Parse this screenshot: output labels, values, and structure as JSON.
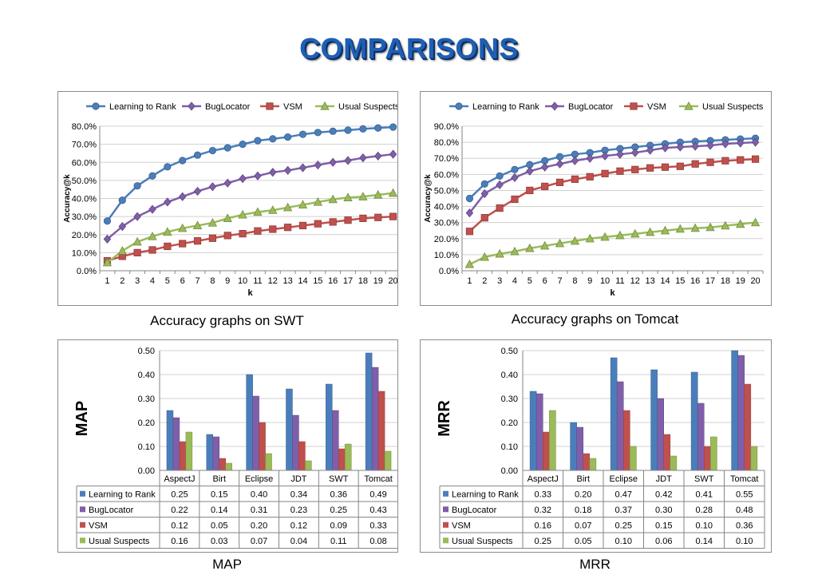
{
  "slide": {
    "title": "COMPARISONS"
  },
  "captions": {
    "swt": "Accuracy graphs on SWT",
    "tomcat": "Accuracy graphs on Tomcat",
    "map": "MAP",
    "mrr": "MRR"
  },
  "colors": {
    "Learning to Rank": "#4a7ebb",
    "BugLocator": "#7f5fa9",
    "VSM": "#c0504d",
    "Usual Suspects": "#9bbb59"
  },
  "chart_data": [
    {
      "id": "swt",
      "type": "line",
      "xlabel": "k",
      "ylabel": "Accuracy@k",
      "x": [
        1,
        2,
        3,
        4,
        5,
        6,
        7,
        8,
        9,
        10,
        11,
        12,
        13,
        14,
        15,
        16,
        17,
        18,
        19,
        20
      ],
      "ylim": [
        0,
        0.8
      ],
      "yticks": [
        0,
        0.1,
        0.2,
        0.3,
        0.4,
        0.5,
        0.6,
        0.7,
        0.8
      ],
      "ytick_labels": [
        "0.0%",
        "10.0%",
        "20.0%",
        "30.0%",
        "40.0%",
        "50.0%",
        "60.0%",
        "70.0%",
        "80.0%"
      ],
      "grid": true,
      "legend": "top",
      "series": [
        {
          "name": "Learning to Rank",
          "marker": "circle",
          "values": [
            0.275,
            0.39,
            0.47,
            0.525,
            0.575,
            0.61,
            0.64,
            0.665,
            0.68,
            0.7,
            0.72,
            0.73,
            0.74,
            0.755,
            0.765,
            0.772,
            0.778,
            0.785,
            0.79,
            0.795
          ]
        },
        {
          "name": "BugLocator",
          "marker": "diamond",
          "values": [
            0.175,
            0.245,
            0.3,
            0.34,
            0.38,
            0.41,
            0.44,
            0.465,
            0.485,
            0.51,
            0.525,
            0.545,
            0.555,
            0.57,
            0.585,
            0.6,
            0.61,
            0.625,
            0.635,
            0.645
          ]
        },
        {
          "name": "VSM",
          "marker": "square",
          "values": [
            0.055,
            0.08,
            0.1,
            0.115,
            0.135,
            0.15,
            0.165,
            0.18,
            0.195,
            0.205,
            0.22,
            0.23,
            0.24,
            0.25,
            0.26,
            0.27,
            0.28,
            0.29,
            0.295,
            0.3
          ]
        },
        {
          "name": "Usual Suspects",
          "marker": "triangle",
          "values": [
            0.045,
            0.11,
            0.16,
            0.19,
            0.215,
            0.235,
            0.25,
            0.265,
            0.29,
            0.31,
            0.325,
            0.335,
            0.35,
            0.365,
            0.38,
            0.395,
            0.405,
            0.41,
            0.42,
            0.43
          ]
        }
      ]
    },
    {
      "id": "tomcat",
      "type": "line",
      "xlabel": "k",
      "ylabel": "Accuracy@k",
      "x": [
        1,
        2,
        3,
        4,
        5,
        6,
        7,
        8,
        9,
        10,
        11,
        12,
        13,
        14,
        15,
        16,
        17,
        18,
        19,
        20
      ],
      "ylim": [
        0,
        0.9
      ],
      "yticks": [
        0,
        0.1,
        0.2,
        0.3,
        0.4,
        0.5,
        0.6,
        0.7,
        0.8,
        0.9
      ],
      "ytick_labels": [
        "0.0%",
        "10.0%",
        "20.0%",
        "30.0%",
        "40.0%",
        "50.0%",
        "60.0%",
        "70.0%",
        "80.0%",
        "90.0%"
      ],
      "grid": true,
      "legend": "top",
      "series": [
        {
          "name": "Learning to Rank",
          "marker": "circle",
          "values": [
            0.45,
            0.54,
            0.59,
            0.63,
            0.66,
            0.685,
            0.71,
            0.725,
            0.735,
            0.75,
            0.76,
            0.77,
            0.78,
            0.79,
            0.8,
            0.805,
            0.81,
            0.815,
            0.82,
            0.825
          ]
        },
        {
          "name": "BugLocator",
          "marker": "diamond",
          "values": [
            0.36,
            0.48,
            0.535,
            0.58,
            0.62,
            0.645,
            0.665,
            0.685,
            0.7,
            0.715,
            0.725,
            0.735,
            0.75,
            0.765,
            0.77,
            0.775,
            0.78,
            0.79,
            0.795,
            0.8
          ]
        },
        {
          "name": "VSM",
          "marker": "square",
          "values": [
            0.245,
            0.33,
            0.39,
            0.445,
            0.5,
            0.525,
            0.55,
            0.57,
            0.585,
            0.605,
            0.62,
            0.63,
            0.64,
            0.645,
            0.65,
            0.665,
            0.675,
            0.685,
            0.69,
            0.695
          ]
        },
        {
          "name": "Usual Suspects",
          "marker": "triangle",
          "values": [
            0.04,
            0.085,
            0.105,
            0.12,
            0.14,
            0.155,
            0.17,
            0.185,
            0.2,
            0.21,
            0.22,
            0.23,
            0.24,
            0.25,
            0.26,
            0.265,
            0.27,
            0.28,
            0.29,
            0.3
          ]
        }
      ]
    },
    {
      "id": "map",
      "type": "bar",
      "ylabel": "MAP",
      "categories": [
        "AspectJ",
        "Birt",
        "Eclipse",
        "JDT",
        "SWT",
        "Tomcat"
      ],
      "ylim": [
        0,
        0.5
      ],
      "yticks": [
        0,
        0.1,
        0.2,
        0.3,
        0.4,
        0.5
      ],
      "ytick_labels": [
        "0.00",
        "0.10",
        "0.20",
        "0.30",
        "0.40",
        "0.50"
      ],
      "grid": true,
      "legend": "data table",
      "series": [
        {
          "name": "Learning to Rank",
          "values": [
            0.25,
            0.15,
            0.4,
            0.34,
            0.36,
            0.49
          ],
          "labels": [
            "0.25",
            "0.15",
            "0.40",
            "0.34",
            "0.36",
            "0.49"
          ]
        },
        {
          "name": "BugLocator",
          "values": [
            0.22,
            0.14,
            0.31,
            0.23,
            0.25,
            0.43
          ],
          "labels": [
            "0.22",
            "0.14",
            "0.31",
            "0.23",
            "0.25",
            "0.43"
          ]
        },
        {
          "name": "VSM",
          "values": [
            0.12,
            0.05,
            0.2,
            0.12,
            0.09,
            0.33
          ],
          "labels": [
            "0.12",
            "0.05",
            "0.20",
            "0.12",
            "0.09",
            "0.33"
          ]
        },
        {
          "name": "Usual Suspects",
          "values": [
            0.16,
            0.03,
            0.07,
            0.04,
            0.11,
            0.08
          ],
          "labels": [
            "0.16",
            "0.03",
            "0.07",
            "0.04",
            "0.11",
            "0.08"
          ]
        }
      ]
    },
    {
      "id": "mrr",
      "type": "bar",
      "ylabel": "MRR",
      "categories": [
        "AspectJ",
        "Birt",
        "Eclipse",
        "JDT",
        "SWT",
        "Tomcat"
      ],
      "ylim": [
        0,
        0.5
      ],
      "yticks": [
        0,
        0.1,
        0.2,
        0.3,
        0.4,
        0.5
      ],
      "ytick_labels": [
        "0.00",
        "0.10",
        "0.20",
        "0.30",
        "0.40",
        "0.50"
      ],
      "grid": true,
      "legend": "data table",
      "series": [
        {
          "name": "Learning to Rank",
          "values": [
            0.33,
            0.2,
            0.47,
            0.42,
            0.41,
            0.55
          ],
          "labels": [
            "0.33",
            "0.20",
            "0.47",
            "0.42",
            "0.41",
            "0.55"
          ]
        },
        {
          "name": "BugLocator",
          "values": [
            0.32,
            0.18,
            0.37,
            0.3,
            0.28,
            0.48
          ],
          "labels": [
            "0.32",
            "0.18",
            "0.37",
            "0.30",
            "0.28",
            "0.48"
          ]
        },
        {
          "name": "VSM",
          "values": [
            0.16,
            0.07,
            0.25,
            0.15,
            0.1,
            0.36
          ],
          "labels": [
            "0.16",
            "0.07",
            "0.25",
            "0.15",
            "0.10",
            "0.36"
          ]
        },
        {
          "name": "Usual Suspects",
          "values": [
            0.25,
            0.05,
            0.1,
            0.06,
            0.14,
            0.1
          ],
          "labels": [
            "0.25",
            "0.05",
            "0.10",
            "0.06",
            "0.14",
            "0.10"
          ]
        }
      ]
    }
  ]
}
